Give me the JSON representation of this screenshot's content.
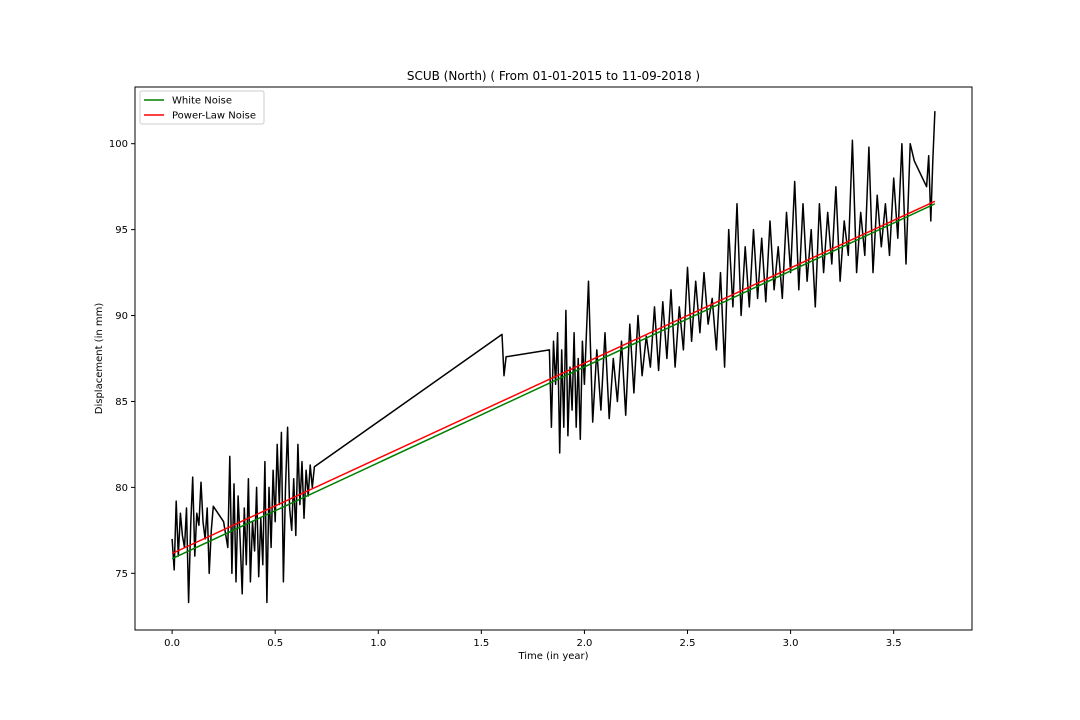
{
  "chart_data": {
    "type": "line",
    "title": "SCUB (North) ( From 01-01-2015 to 11-09-2018 )",
    "xlabel": "Time (in year)",
    "ylabel": "Displacement (in mm)",
    "xlim": [
      -0.18,
      3.88
    ],
    "ylim": [
      71.7,
      103.3
    ],
    "xticks": [
      0.0,
      0.5,
      1.0,
      1.5,
      2.0,
      2.5,
      3.0,
      3.5
    ],
    "xtick_labels": [
      "0.0",
      "0.5",
      "1.0",
      "1.5",
      "2.0",
      "2.5",
      "3.0",
      "3.5"
    ],
    "yticks": [
      75,
      80,
      85,
      90,
      95,
      100
    ],
    "ytick_labels": [
      "75",
      "80",
      "85",
      "90",
      "95",
      "100"
    ],
    "grid": false,
    "legend": {
      "position": "top-left",
      "entries": [
        "White Noise",
        "Power-Law Noise"
      ]
    },
    "series": [
      {
        "name": "",
        "color": "#000000",
        "x": [
          0.0,
          0.01,
          0.02,
          0.03,
          0.04,
          0.05,
          0.06,
          0.07,
          0.08,
          0.09,
          0.1,
          0.11,
          0.12,
          0.13,
          0.14,
          0.15,
          0.16,
          0.17,
          0.18,
          0.19,
          0.2,
          0.25,
          0.27,
          0.28,
          0.29,
          0.3,
          0.31,
          0.32,
          0.33,
          0.34,
          0.35,
          0.36,
          0.37,
          0.38,
          0.39,
          0.4,
          0.41,
          0.42,
          0.43,
          0.44,
          0.45,
          0.46,
          0.47,
          0.48,
          0.49,
          0.5,
          0.51,
          0.52,
          0.53,
          0.54,
          0.55,
          0.56,
          0.57,
          0.58,
          0.59,
          0.6,
          0.61,
          0.62,
          0.63,
          0.64,
          0.65,
          0.66,
          0.67,
          0.68,
          0.69,
          1.6,
          1.61,
          1.62,
          1.83,
          1.84,
          1.85,
          1.86,
          1.87,
          1.88,
          1.89,
          1.9,
          1.91,
          1.92,
          1.93,
          1.94,
          1.95,
          1.96,
          1.97,
          1.98,
          1.99,
          2.0,
          2.02,
          2.04,
          2.06,
          2.08,
          2.1,
          2.12,
          2.14,
          2.16,
          2.18,
          2.2,
          2.22,
          2.24,
          2.26,
          2.28,
          2.3,
          2.32,
          2.34,
          2.36,
          2.38,
          2.4,
          2.42,
          2.44,
          2.46,
          2.48,
          2.5,
          2.52,
          2.54,
          2.56,
          2.58,
          2.6,
          2.62,
          2.64,
          2.66,
          2.68,
          2.7,
          2.72,
          2.74,
          2.76,
          2.78,
          2.8,
          2.82,
          2.84,
          2.86,
          2.88,
          2.9,
          2.92,
          2.94,
          2.96,
          2.98,
          3.0,
          3.02,
          3.04,
          3.06,
          3.08,
          3.1,
          3.12,
          3.14,
          3.16,
          3.18,
          3.2,
          3.22,
          3.24,
          3.26,
          3.28,
          3.3,
          3.32,
          3.34,
          3.36,
          3.38,
          3.4,
          3.42,
          3.44,
          3.46,
          3.48,
          3.5,
          3.52,
          3.54,
          3.56,
          3.58,
          3.6,
          3.66,
          3.67,
          3.68,
          3.69,
          3.7
        ],
        "y": [
          77.0,
          75.2,
          79.2,
          76.0,
          78.5,
          77.2,
          76.5,
          78.8,
          73.3,
          77.8,
          80.6,
          76.0,
          78.5,
          77.8,
          80.3,
          78.0,
          77.0,
          78.8,
          75.0,
          77.5,
          78.9,
          78.0,
          76.5,
          81.8,
          75.0,
          80.2,
          74.5,
          79.5,
          77.0,
          73.8,
          78.8,
          75.5,
          80.5,
          74.5,
          78.0,
          76.3,
          80.0,
          74.8,
          78.2,
          75.5,
          81.5,
          73.3,
          80.0,
          76.5,
          81.0,
          78.0,
          82.5,
          79.0,
          83.2,
          74.5,
          80.0,
          83.5,
          78.8,
          77.5,
          80.5,
          77.2,
          82.5,
          79.0,
          81.5,
          78.2,
          81.0,
          79.5,
          81.3,
          80.0,
          81.2,
          88.9,
          86.5,
          87.6,
          88.0,
          83.5,
          88.5,
          86.0,
          89.0,
          82.0,
          88.0,
          83.5,
          90.3,
          83.0,
          87.0,
          84.5,
          89.0,
          83.5,
          87.5,
          82.8,
          88.5,
          86.0,
          92.0,
          83.8,
          88.0,
          84.5,
          89.0,
          84.0,
          87.5,
          85.0,
          88.5,
          84.2,
          89.5,
          85.5,
          90.0,
          86.5,
          88.8,
          87.0,
          90.5,
          86.8,
          90.8,
          87.5,
          91.5,
          87.0,
          90.5,
          88.0,
          92.8,
          88.5,
          92.0,
          89.0,
          92.5,
          89.5,
          91.0,
          88.0,
          92.5,
          87.0,
          95.0,
          90.5,
          96.5,
          90.0,
          94.0,
          90.5,
          95.0,
          91.0,
          94.5,
          90.8,
          95.5,
          91.5,
          94.0,
          91.0,
          96.0,
          92.5,
          97.8,
          91.5,
          96.5,
          92.0,
          95.0,
          90.5,
          96.5,
          92.5,
          96.0,
          93.0,
          97.5,
          92.0,
          95.5,
          93.5,
          100.2,
          92.5,
          96.0,
          93.5,
          99.8,
          92.5,
          97.0,
          94.0,
          96.5,
          93.5,
          98.0,
          94.5,
          100.0,
          93.0,
          100.0,
          99.0,
          97.5,
          99.3,
          95.5,
          99.0,
          101.9
        ]
      },
      {
        "name": "White Noise",
        "color": "#008000",
        "x": [
          0.0,
          3.7
        ],
        "y": [
          75.85,
          96.5
        ]
      },
      {
        "name": "Power-Law Noise",
        "color": "#ff0000",
        "x": [
          0.0,
          3.7
        ],
        "y": [
          76.15,
          96.65
        ]
      }
    ]
  }
}
